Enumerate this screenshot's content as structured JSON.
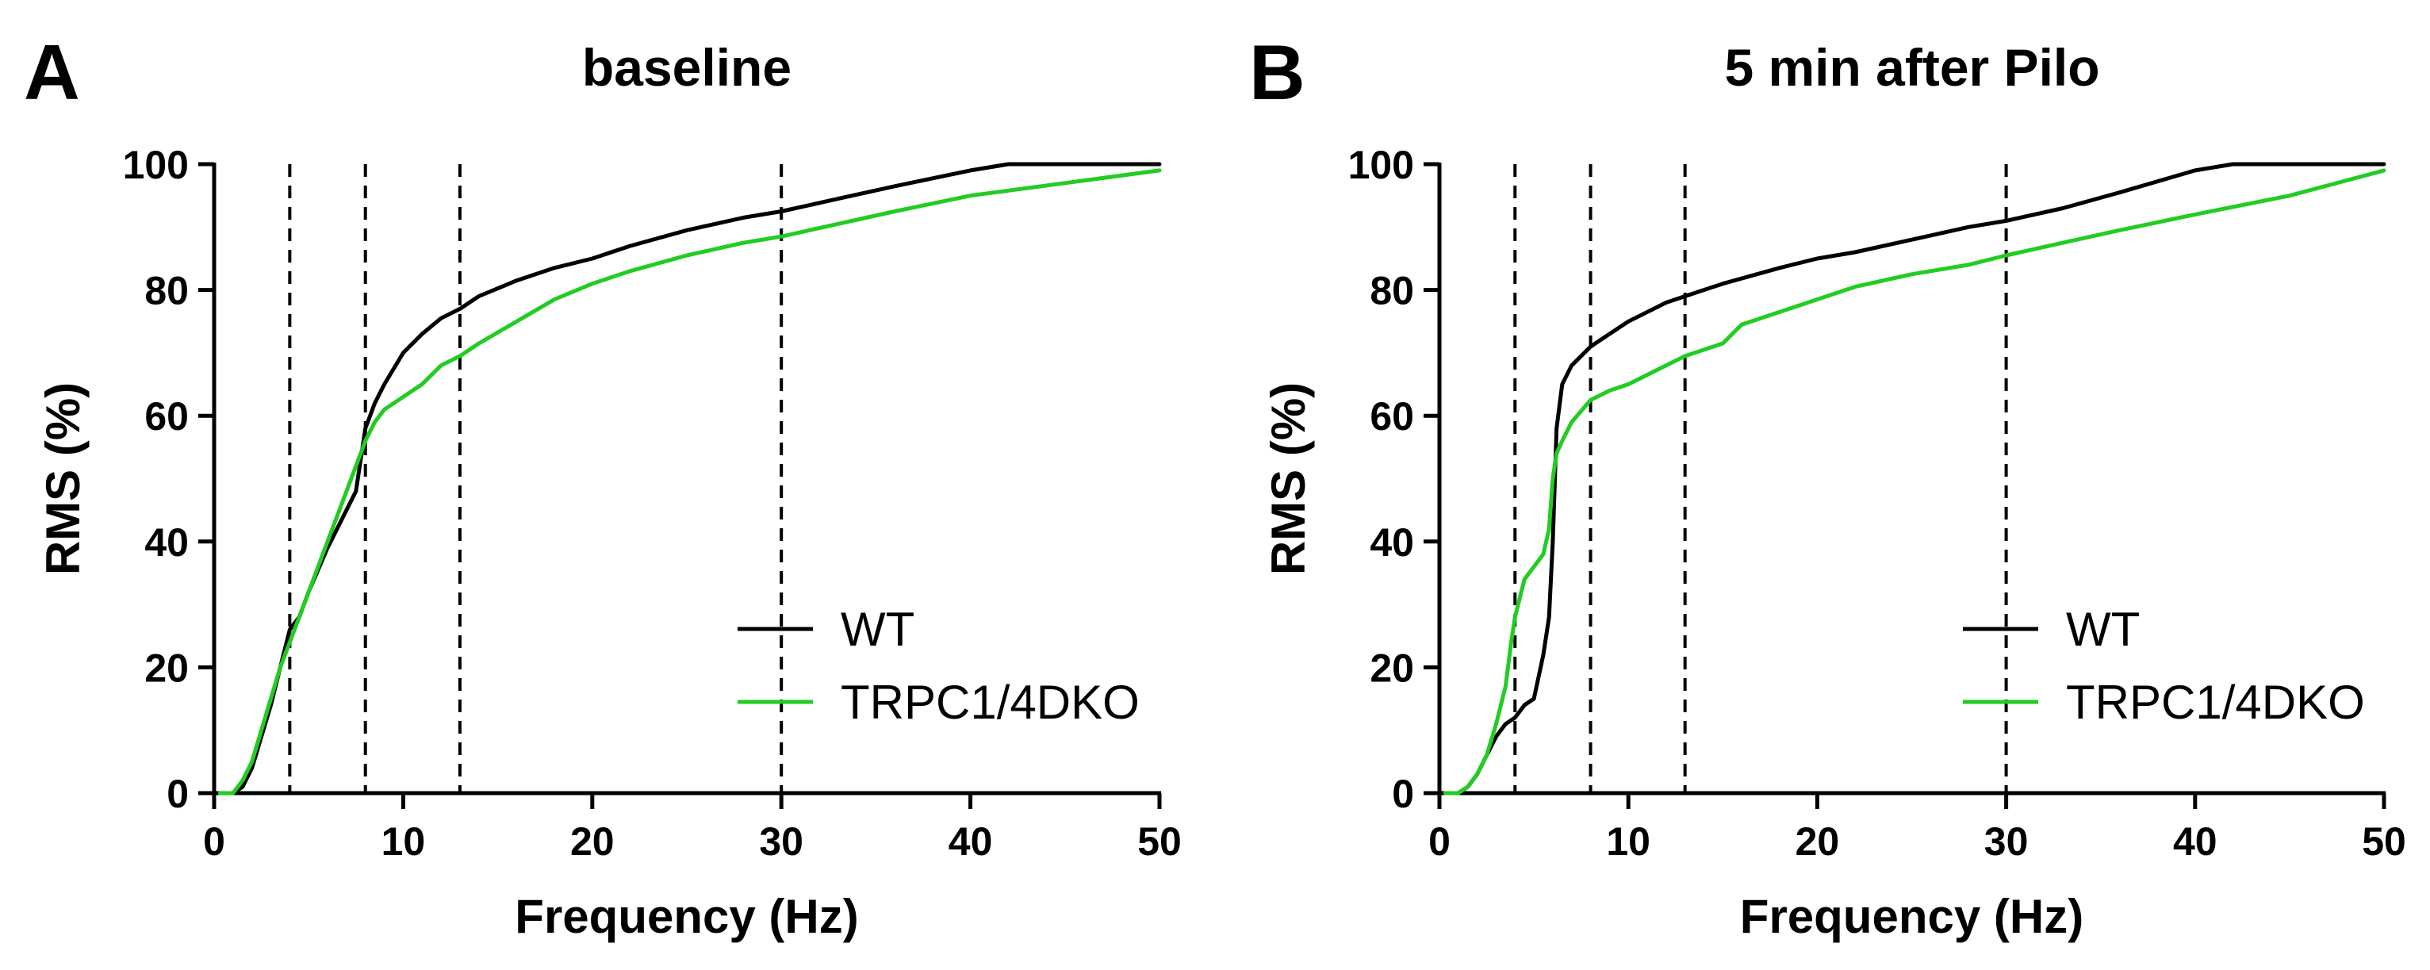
{
  "chart_data": [
    {
      "type": "line",
      "panel_label": "A",
      "title": "baseline",
      "xlabel": "Frequency (Hz)",
      "ylabel": "RMS (%)",
      "xlim": [
        0,
        50
      ],
      "ylim": [
        0,
        100
      ],
      "x_ticks": [
        "0",
        "10",
        "20",
        "30",
        "40",
        "50"
      ],
      "y_ticks": [
        "0",
        "20",
        "40",
        "60",
        "80",
        "100"
      ],
      "reference_lines_x": [
        4,
        8,
        13,
        30
      ],
      "legend_position": "bottom-right",
      "series": [
        {
          "name": "WT",
          "color": "#000000",
          "x": [
            0.3,
            1.0,
            1.5,
            2.0,
            2.5,
            3.0,
            3.5,
            4.0,
            4.5,
            5.0,
            6.0,
            7.0,
            7.5,
            8.0,
            8.5,
            9.0,
            10.0,
            11.0,
            12.0,
            13.0,
            14.0,
            16.0,
            18.0,
            20.0,
            22.0,
            25.0,
            28.0,
            30.0,
            33.0,
            36.0,
            40.0,
            42.0,
            45.0,
            50.0
          ],
          "y": [
            0,
            0,
            1,
            4,
            9,
            14,
            20,
            26,
            28,
            32,
            39,
            45,
            48,
            58,
            62,
            65,
            70,
            73,
            75.5,
            77,
            79,
            81.5,
            83.5,
            85,
            87,
            89.5,
            91.5,
            92.5,
            94.5,
            96.5,
            99,
            100,
            100,
            100
          ]
        },
        {
          "name": "TRPC1/4DKO",
          "color": "#22cc22",
          "x": [
            0.3,
            1.0,
            1.5,
            2.0,
            2.5,
            3.0,
            3.5,
            4.0,
            4.5,
            5.0,
            6.0,
            7.0,
            8.0,
            8.5,
            9.0,
            10.0,
            11.0,
            12.0,
            13.0,
            14.0,
            16.0,
            18.0,
            20.0,
            22.0,
            25.0,
            28.0,
            30.0,
            33.0,
            36.0,
            40.0,
            45.0,
            50.0
          ],
          "y": [
            0,
            0,
            2,
            5,
            10,
            15,
            20,
            24,
            28,
            32,
            40,
            48,
            56,
            59,
            61,
            63,
            65,
            68,
            69.5,
            71.5,
            75,
            78.5,
            81,
            83,
            85.5,
            87.5,
            88.5,
            90.5,
            92.5,
            95,
            97,
            99
          ]
        }
      ]
    },
    {
      "type": "line",
      "panel_label": "B",
      "title": "5  min after Pilo",
      "xlabel": "Frequency (Hz)",
      "ylabel": "RMS (%)",
      "xlim": [
        0,
        50
      ],
      "ylim": [
        0,
        100
      ],
      "x_ticks": [
        "0",
        "10",
        "20",
        "30",
        "40",
        "50"
      ],
      "y_ticks": [
        "0",
        "20",
        "40",
        "60",
        "80",
        "100"
      ],
      "reference_lines_x": [
        4,
        8,
        13,
        30
      ],
      "legend_position": "bottom-right",
      "series": [
        {
          "name": "WT",
          "color": "#000000",
          "x": [
            0.3,
            1.0,
            1.5,
            2.0,
            2.5,
            3.0,
            3.5,
            4.0,
            4.5,
            5.0,
            5.5,
            5.8,
            6.0,
            6.2,
            6.5,
            7.0,
            8.0,
            9.0,
            10.0,
            12.0,
            13.0,
            15.0,
            18.0,
            20.0,
            22.0,
            25.0,
            28.0,
            30.0,
            33.0,
            36.0,
            40.0,
            42.0,
            45.0,
            50.0
          ],
          "y": [
            0,
            0,
            1,
            3,
            6,
            9,
            11,
            12,
            14,
            15,
            22,
            28,
            40,
            58,
            65,
            68,
            71,
            73,
            75,
            78,
            79,
            81,
            83.5,
            85,
            86,
            88,
            90,
            91,
            93,
            95.5,
            99,
            100,
            100,
            100
          ]
        },
        {
          "name": "TRPC1/4DKO",
          "color": "#22cc22",
          "x": [
            0.3,
            1.0,
            1.5,
            2.0,
            2.5,
            3.0,
            3.5,
            3.8,
            4.0,
            4.5,
            5.0,
            5.5,
            5.8,
            6.0,
            6.2,
            6.5,
            7.0,
            8.0,
            9.0,
            10.0,
            12.0,
            13.0,
            15.0,
            16.0,
            18.0,
            20.0,
            22.0,
            25.0,
            28.0,
            30.0,
            33.0,
            36.0,
            40.0,
            45.0,
            50.0
          ],
          "y": [
            0,
            0,
            1,
            3,
            6,
            11,
            17,
            24,
            28,
            34,
            36,
            38,
            42,
            50,
            54,
            56,
            59,
            62.5,
            64,
            65,
            68,
            69.5,
            71.5,
            74.5,
            76.5,
            78.5,
            80.5,
            82.5,
            84,
            85.5,
            87.5,
            89.5,
            92,
            95,
            99
          ]
        }
      ]
    }
  ]
}
